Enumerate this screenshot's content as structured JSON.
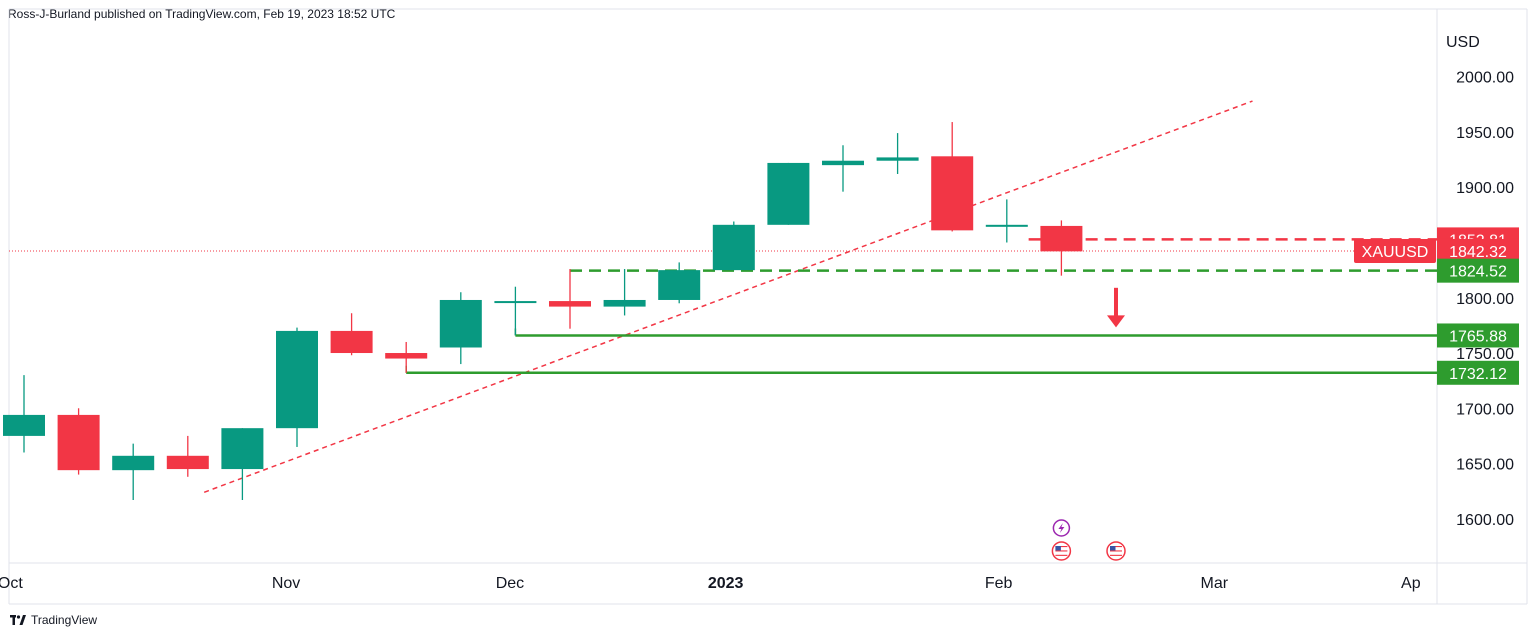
{
  "header": {
    "publisher_line": "Ross-J-Burland published on TradingView.com, Feb 19, 2023 18:52 UTC"
  },
  "footer": {
    "brand": "TradingView"
  },
  "colors": {
    "bull": "#089981",
    "bear": "#f23645",
    "level_green": "#2e9c2e",
    "trend_red": "#f23645",
    "grid_border": "#e0e3eb"
  },
  "chart_data": {
    "type": "candlestick",
    "symbol": "XAUUSD",
    "currency_label": "USD",
    "interval": "weekly",
    "ylim": [
      1560,
      2045
    ],
    "y_ticks": [
      "2000.00",
      "1950.00",
      "1900.00",
      "1850.00",
      "1800.00",
      "1750.00",
      "1700.00",
      "1650.00",
      "1600.00"
    ],
    "x_ticks": [
      {
        "label": "Oct",
        "bold": false
      },
      {
        "label": "Nov",
        "bold": false
      },
      {
        "label": "Dec",
        "bold": false
      },
      {
        "label": "2023",
        "bold": true
      },
      {
        "label": "Feb",
        "bold": false
      },
      {
        "label": "Mar",
        "bold": false
      },
      {
        "label": "Ap",
        "bold": false
      }
    ],
    "candles": [
      {
        "week": "Sep 25",
        "open": 1675,
        "high": 1730,
        "low": 1660,
        "close": 1694
      },
      {
        "week": "Oct 02",
        "open": 1694,
        "high": 1700,
        "low": 1640,
        "close": 1644
      },
      {
        "week": "Oct 09",
        "open": 1644,
        "high": 1668,
        "low": 1617,
        "close": 1657
      },
      {
        "week": "Oct 16",
        "open": 1657,
        "high": 1675,
        "low": 1638,
        "close": 1645
      },
      {
        "week": "Oct 23",
        "open": 1645,
        "high": 1682,
        "low": 1617,
        "close": 1682
      },
      {
        "week": "Oct 30",
        "open": 1682,
        "high": 1773,
        "low": 1665,
        "close": 1770
      },
      {
        "week": "Nov 06",
        "open": 1770,
        "high": 1786,
        "low": 1748,
        "close": 1750
      },
      {
        "week": "Nov 13",
        "open": 1750,
        "high": 1760,
        "low": 1732,
        "close": 1745
      },
      {
        "week": "Nov 20",
        "open": 1755,
        "high": 1805,
        "low": 1740,
        "close": 1798
      },
      {
        "week": "Nov 27",
        "open": 1797,
        "high": 1810,
        "low": 1766,
        "close": 1797
      },
      {
        "week": "Dec 04",
        "open": 1797,
        "high": 1826,
        "low": 1772,
        "close": 1792
      },
      {
        "week": "Dec 11",
        "open": 1792,
        "high": 1826,
        "low": 1784,
        "close": 1798
      },
      {
        "week": "Dec 18",
        "open": 1798,
        "high": 1832,
        "low": 1795,
        "close": 1825
      },
      {
        "week": "Dec 25",
        "open": 1825,
        "high": 1869,
        "low": 1825,
        "close": 1866
      },
      {
        "week": "Jan 02",
        "open": 1866,
        "high": 1922,
        "low": 1866,
        "close": 1922
      },
      {
        "week": "Jan 09",
        "open": 1920,
        "high": 1938,
        "low": 1896,
        "close": 1924
      },
      {
        "week": "Jan 16",
        "open": 1924,
        "high": 1949,
        "low": 1912,
        "close": 1927
      },
      {
        "week": "Jan 23",
        "open": 1928,
        "high": 1959,
        "low": 1860,
        "close": 1861
      },
      {
        "week": "Jan 30",
        "open": 1866,
        "high": 1889,
        "low": 1850,
        "close": 1866
      },
      {
        "week": "Feb 06",
        "open": 1865,
        "high": 1870,
        "low": 1820,
        "close": 1842
      }
    ],
    "price_tags": [
      {
        "label": "",
        "value": "1852.81",
        "price": 1852.81,
        "style": "bear"
      },
      {
        "label": "XAUUSD",
        "value": "1842.32",
        "price": 1842.32,
        "style": "bear-symbol"
      },
      {
        "label": "",
        "value": "1824.52",
        "price": 1824.52,
        "style": "green"
      },
      {
        "label": "",
        "value": "1765.88",
        "price": 1765.88,
        "style": "green"
      },
      {
        "label": "",
        "value": "1732.12",
        "price": 1732.12,
        "style": "green"
      }
    ],
    "lines": [
      {
        "kind": "dashed-trendline",
        "color": "bear",
        "from": {
          "bar": 3.3,
          "price": 1624
        },
        "to": {
          "bar": 22.5,
          "price": 1978
        }
      },
      {
        "kind": "dashed-level",
        "color": "bear",
        "from_bar": 18.4,
        "price": 1852.81
      },
      {
        "kind": "dashed-level",
        "color": "green",
        "from_bar": 10.0,
        "price": 1824.52
      },
      {
        "kind": "solid-level",
        "color": "green",
        "from_bar": 9.0,
        "price": 1765.88
      },
      {
        "kind": "solid-level",
        "color": "green",
        "from_bar": 7.0,
        "price": 1732.12
      }
    ],
    "arrow": {
      "bar": 20.0,
      "from_price": 1809,
      "to_price": 1775,
      "color": "bear"
    },
    "current_price": 1842.32,
    "events": [
      {
        "icon": "lightning-event-icon",
        "bar": 19.0,
        "row": 1
      },
      {
        "icon": "us-flag-event-icon",
        "bar": 19.0,
        "row": 2
      },
      {
        "icon": "us-flag-event-icon",
        "bar": 20.0,
        "row": 2
      }
    ]
  }
}
